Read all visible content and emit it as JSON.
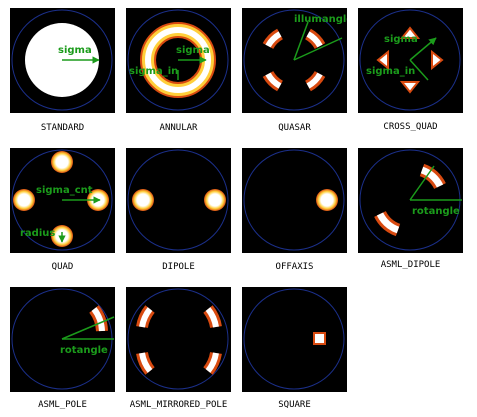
{
  "palette": {
    "background": "#000000",
    "pupil_ring": "#1b2f8a",
    "spot_core": "#ffffff",
    "spot_glow": "#ffcf3a",
    "spot_edge": "#d84a10",
    "annotation": "#1b9b1b"
  },
  "panels": [
    {
      "caption": "STANDARD",
      "annotations": [
        "sigma"
      ]
    },
    {
      "caption": "ANNULAR",
      "annotations": [
        "sigma",
        "sigma_in"
      ]
    },
    {
      "caption": "QUASAR",
      "annotations": [
        "illumangle"
      ]
    },
    {
      "caption": "CROSS_QUAD",
      "annotations": [
        "sigma",
        "sigma_in"
      ]
    },
    {
      "caption": "QUAD",
      "annotations": [
        "sigma_cnt",
        "radius"
      ]
    },
    {
      "caption": "DIPOLE",
      "annotations": []
    },
    {
      "caption": "OFFAXIS",
      "annotations": []
    },
    {
      "caption": "ASML_DIPOLE",
      "annotations": [
        "rotangle"
      ]
    },
    {
      "caption": "ASML_POLE",
      "annotations": [
        "rotangle"
      ]
    },
    {
      "caption": "ASML_MIRRORED_POLE",
      "annotations": []
    },
    {
      "caption": "SQUARE",
      "annotations": []
    }
  ]
}
